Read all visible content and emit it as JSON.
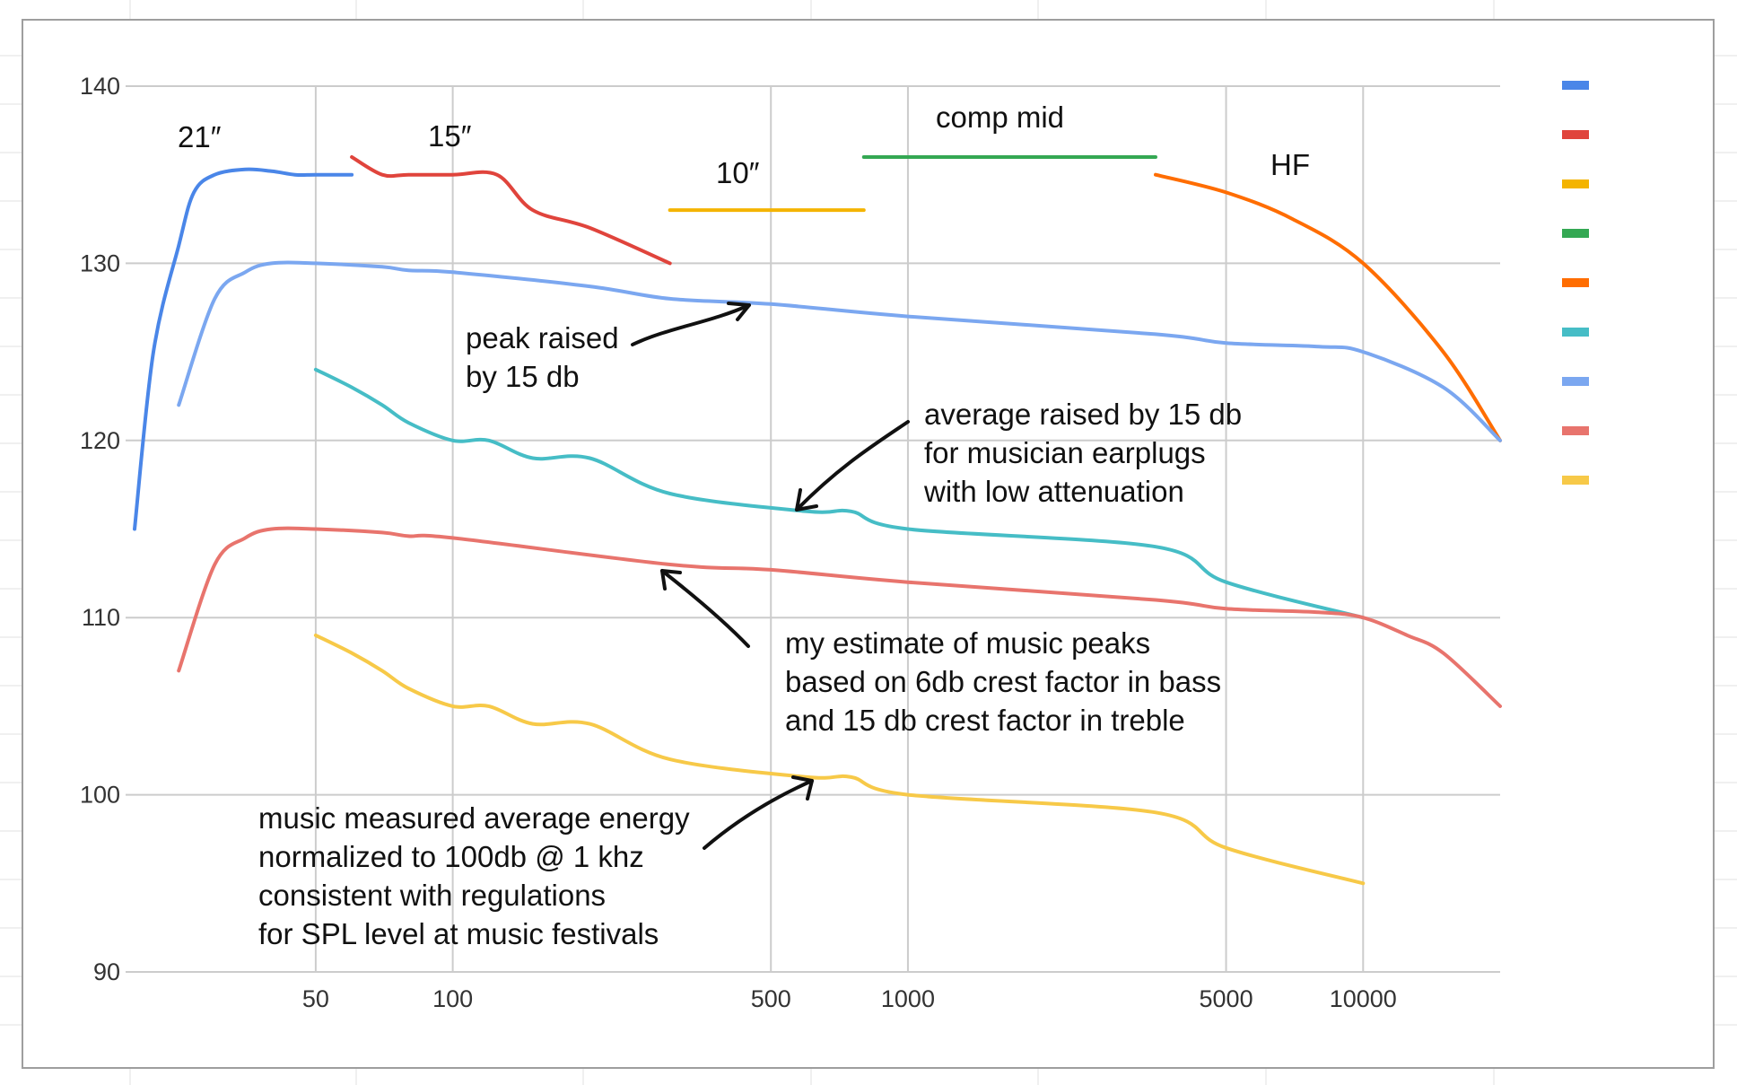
{
  "chart_data": {
    "type": "line",
    "xscale": "log",
    "ylim": [
      90,
      140
    ],
    "xlim": [
      20,
      20000
    ],
    "x_ticks": [
      "50",
      "100",
      "500",
      "1000",
      "5000",
      "10000"
    ],
    "y_ticks": [
      "90",
      "100",
      "110",
      "120",
      "130",
      "140"
    ],
    "grid": true,
    "legend_position": "right",
    "series": [
      {
        "color": "#4a86e8",
        "points": [
          [
            20,
            115
          ],
          [
            22,
            125
          ],
          [
            25,
            131
          ],
          [
            27,
            134
          ],
          [
            30,
            135
          ],
          [
            35,
            135.3
          ],
          [
            40,
            135.2
          ],
          [
            45,
            135
          ],
          [
            50,
            135
          ],
          [
            60,
            135
          ]
        ]
      },
      {
        "color": "#e0443c",
        "points": [
          [
            60,
            136
          ],
          [
            70,
            135
          ],
          [
            80,
            135
          ],
          [
            100,
            135
          ],
          [
            125,
            135
          ],
          [
            150,
            133
          ],
          [
            200,
            132
          ],
          [
            300,
            130
          ]
        ]
      },
      {
        "color": "#f4b400",
        "points": [
          [
            300,
            133
          ],
          [
            800,
            133
          ]
        ]
      },
      {
        "color": "#34a853",
        "points": [
          [
            800,
            136
          ],
          [
            3500,
            136
          ]
        ]
      },
      {
        "color": "#ff6d01",
        "points": [
          [
            3500,
            135
          ],
          [
            5000,
            134
          ],
          [
            7000,
            132.5
          ],
          [
            10000,
            130
          ],
          [
            15000,
            125
          ],
          [
            20000,
            120
          ]
        ]
      },
      {
        "color": "#46bdc6",
        "points": [
          [
            50,
            124
          ],
          [
            60,
            123
          ],
          [
            70,
            122
          ],
          [
            80,
            121
          ],
          [
            100,
            120
          ],
          [
            120,
            120
          ],
          [
            150,
            119
          ],
          [
            200,
            119
          ],
          [
            300,
            117
          ],
          [
            600,
            116
          ],
          [
            750,
            116
          ],
          [
            1000,
            115
          ],
          [
            3500,
            114
          ],
          [
            5000,
            112
          ],
          [
            10000,
            110
          ]
        ]
      },
      {
        "color": "#7ba7f0",
        "points": [
          [
            25,
            122
          ],
          [
            30,
            128
          ],
          [
            35,
            129.5
          ],
          [
            40,
            130
          ],
          [
            50,
            130
          ],
          [
            70,
            129.8
          ],
          [
            80,
            129.6
          ],
          [
            100,
            129.5
          ],
          [
            200,
            128.7
          ],
          [
            300,
            128
          ],
          [
            500,
            127.7
          ],
          [
            1000,
            127
          ],
          [
            3500,
            126
          ],
          [
            5000,
            125.5
          ],
          [
            8000,
            125.3
          ],
          [
            10000,
            125
          ],
          [
            15000,
            123
          ],
          [
            20000,
            120
          ]
        ]
      },
      {
        "color": "#e8746d",
        "points": [
          [
            25,
            107
          ],
          [
            30,
            113
          ],
          [
            35,
            114.5
          ],
          [
            40,
            115
          ],
          [
            50,
            115
          ],
          [
            70,
            114.8
          ],
          [
            80,
            114.6
          ],
          [
            100,
            114.5
          ],
          [
            300,
            113
          ],
          [
            500,
            112.7
          ],
          [
            1000,
            112
          ],
          [
            3500,
            111
          ],
          [
            5000,
            110.5
          ],
          [
            8000,
            110.3
          ],
          [
            10000,
            110
          ],
          [
            12500,
            109
          ],
          [
            15000,
            108
          ],
          [
            20000,
            105
          ]
        ]
      },
      {
        "color": "#f7c948",
        "points": [
          [
            50,
            109
          ],
          [
            60,
            108
          ],
          [
            70,
            107
          ],
          [
            80,
            106
          ],
          [
            100,
            105
          ],
          [
            120,
            105
          ],
          [
            150,
            104
          ],
          [
            200,
            104
          ],
          [
            300,
            102
          ],
          [
            600,
            101
          ],
          [
            750,
            101
          ],
          [
            1000,
            100
          ],
          [
            3500,
            99
          ],
          [
            5000,
            97
          ],
          [
            10000,
            95
          ]
        ]
      }
    ],
    "labels": {
      "woofer21": "21″",
      "woofer15": "15″",
      "mid10": "10″",
      "compmid": "comp mid",
      "hf": "HF"
    },
    "annotations": {
      "peak": [
        "peak raised",
        "by 15 db"
      ],
      "average": [
        "average raised by 15 db",
        "for musician earplugs",
        "with low attenuation"
      ],
      "estimate": [
        "my estimate of music peaks",
        "based on 6db crest factor in bass",
        "and 15 db crest factor in treble"
      ],
      "measured": [
        "music measured average energy",
        "normalized to 100db @ 1 khz",
        "consistent with regulations",
        "for SPL level at music festivals"
      ]
    }
  }
}
